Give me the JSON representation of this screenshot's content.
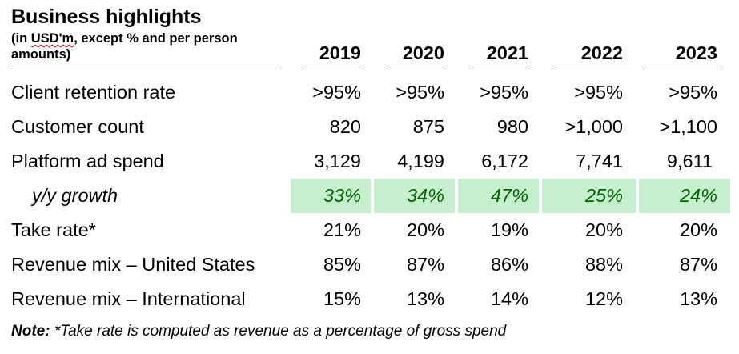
{
  "header": {
    "title": "Business highlights",
    "subtitle_pre": "(in ",
    "subtitle_squiggle": "USD'm",
    "subtitle_post": ", except % and per person amounts)"
  },
  "years": [
    "2019",
    "2020",
    "2021",
    "2022",
    "2023"
  ],
  "rows": [
    {
      "label": "Client retention rate",
      "values": [
        ">95%",
        ">95%",
        ">95%",
        ">95%",
        ">95%"
      ]
    },
    {
      "label": "Customer count",
      "values": [
        "820",
        "875",
        "980",
        ">1,000",
        ">1,100"
      ]
    },
    {
      "label": "Platform ad spend",
      "values": [
        "3,129",
        "4,199",
        "6,172",
        "7,741",
        "9,611"
      ]
    },
    {
      "label": "y/y growth",
      "values": [
        "33%",
        "34%",
        "47%",
        "25%",
        "24%"
      ]
    },
    {
      "label": "Take rate*",
      "values": [
        "21%",
        "20%",
        "19%",
        "20%",
        "20%"
      ]
    },
    {
      "label": "Revenue mix – United States",
      "values": [
        "85%",
        "87%",
        "86%",
        "88%",
        "87%"
      ]
    },
    {
      "label": "Revenue mix – International",
      "values": [
        "15%",
        "13%",
        "14%",
        "12%",
        "13%"
      ]
    }
  ],
  "note": {
    "prefix": "Note:",
    "text": " *Take rate is computed as revenue as a percentage of gross spend"
  },
  "colors": {
    "growth_fill": "#c6efce",
    "growth_text": "#006100"
  }
}
